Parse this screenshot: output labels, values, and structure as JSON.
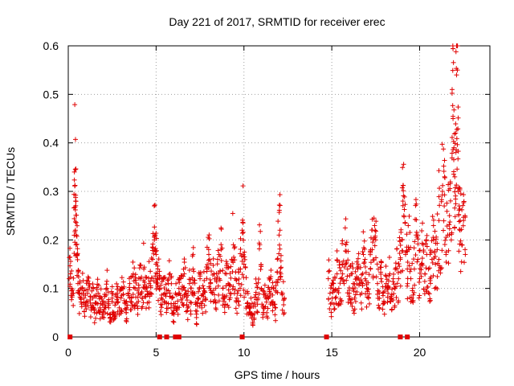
{
  "chart_data": {
    "type": "scatter",
    "title": "Day 221 of 2017, SRMTID for receiver erec",
    "xlabel": "GPS time / hours",
    "ylabel": "SRMTID / TECUs",
    "xlim": [
      0,
      24
    ],
    "ylim": [
      0,
      0.6
    ],
    "xticks": [
      0,
      5,
      10,
      15,
      20
    ],
    "yticks": [
      0,
      0.1,
      0.2,
      0.3,
      0.4,
      0.5,
      0.6
    ],
    "xtick_labels": [
      "0",
      "5",
      "10",
      "15",
      "20"
    ],
    "ytick_labels": [
      "0",
      "0.1",
      "0.2",
      "0.3",
      "0.4",
      "0.5",
      "0.6"
    ],
    "grid": true,
    "marker": "+",
    "color": "#e00000",
    "series": [
      {
        "name": "SRMTID",
        "points": [
          [
            0.05,
            0.12
          ],
          [
            0.12,
            0.13
          ],
          [
            0.2,
            0.1
          ],
          [
            0.3,
            0.09
          ],
          [
            0.35,
            0.34
          ],
          [
            0.4,
            0.345
          ],
          [
            0.42,
            0.28
          ],
          [
            0.45,
            0.21
          ],
          [
            0.5,
            0.17
          ],
          [
            0.55,
            0.11
          ],
          [
            0.6,
            0.09
          ],
          [
            0.7,
            0.08
          ],
          [
            0.8,
            0.1
          ],
          [
            0.9,
            0.08
          ],
          [
            1.0,
            0.07
          ],
          [
            1.1,
            0.09
          ],
          [
            1.2,
            0.11
          ],
          [
            1.3,
            0.06
          ],
          [
            1.4,
            0.08
          ],
          [
            1.5,
            0.05
          ],
          [
            1.6,
            0.07
          ],
          [
            1.7,
            0.09
          ],
          [
            1.8,
            0.06
          ],
          [
            1.9,
            0.08
          ],
          [
            2.0,
            0.05
          ],
          [
            2.1,
            0.07
          ],
          [
            2.2,
            0.1
          ],
          [
            2.3,
            0.06
          ],
          [
            2.4,
            0.04
          ],
          [
            2.5,
            0.08
          ],
          [
            2.6,
            0.05
          ],
          [
            2.7,
            0.07
          ],
          [
            2.8,
            0.09
          ],
          [
            2.9,
            0.06
          ],
          [
            3.0,
            0.08
          ],
          [
            3.1,
            0.1
          ],
          [
            3.2,
            0.07
          ],
          [
            3.3,
            0.05
          ],
          [
            3.4,
            0.09
          ],
          [
            3.5,
            0.11
          ],
          [
            3.6,
            0.08
          ],
          [
            3.7,
            0.13
          ],
          [
            3.8,
            0.1
          ],
          [
            3.9,
            0.07
          ],
          [
            4.0,
            0.09
          ],
          [
            4.1,
            0.12
          ],
          [
            4.2,
            0.08
          ],
          [
            4.3,
            0.14
          ],
          [
            4.4,
            0.1
          ],
          [
            4.5,
            0.07
          ],
          [
            4.6,
            0.11
          ],
          [
            4.7,
            0.09
          ],
          [
            4.8,
            0.16
          ],
          [
            4.9,
            0.2
          ],
          [
            4.95,
            0.21
          ],
          [
            5.0,
            0.17
          ],
          [
            5.05,
            0.12
          ],
          [
            5.1,
            0.14
          ],
          [
            5.2,
            0.1
          ],
          [
            5.3,
            0.08
          ],
          [
            5.4,
            0.12
          ],
          [
            5.5,
            0.09
          ],
          [
            5.6,
            0.07
          ],
          [
            5.7,
            0.11
          ],
          [
            5.8,
            0.13
          ],
          [
            5.9,
            0.08
          ],
          [
            6.0,
            0.05
          ],
          [
            6.1,
            0.09
          ],
          [
            6.2,
            0.06
          ],
          [
            6.3,
            0.1
          ],
          [
            6.4,
            0.12
          ],
          [
            6.5,
            0.08
          ],
          [
            6.6,
            0.13
          ],
          [
            6.7,
            0.09
          ],
          [
            6.8,
            0.06
          ],
          [
            6.9,
            0.11
          ],
          [
            7.0,
            0.07
          ],
          [
            7.1,
            0.14
          ],
          [
            7.2,
            0.09
          ],
          [
            7.3,
            0.04
          ],
          [
            7.4,
            0.08
          ],
          [
            7.5,
            0.12
          ],
          [
            7.6,
            0.06
          ],
          [
            7.7,
            0.1
          ],
          [
            7.8,
            0.08
          ],
          [
            7.9,
            0.14
          ],
          [
            8.0,
            0.17
          ],
          [
            8.1,
            0.11
          ],
          [
            8.2,
            0.09
          ],
          [
            8.3,
            0.13
          ],
          [
            8.4,
            0.07
          ],
          [
            8.5,
            0.16
          ],
          [
            8.6,
            0.12
          ],
          [
            8.7,
            0.18
          ],
          [
            8.8,
            0.1
          ],
          [
            8.9,
            0.08
          ],
          [
            9.0,
            0.13
          ],
          [
            9.1,
            0.11
          ],
          [
            9.2,
            0.09
          ],
          [
            9.3,
            0.16
          ],
          [
            9.4,
            0.19
          ],
          [
            9.5,
            0.12
          ],
          [
            9.6,
            0.08
          ],
          [
            9.7,
            0.11
          ],
          [
            9.8,
            0.14
          ],
          [
            9.9,
            0.22
          ],
          [
            9.95,
            0.235
          ],
          [
            10.0,
            0.15
          ],
          [
            10.1,
            0.09
          ],
          [
            10.2,
            0.07
          ],
          [
            10.3,
            0.05
          ],
          [
            10.4,
            0.08
          ],
          [
            10.5,
            0.03
          ],
          [
            10.6,
            0.07
          ],
          [
            10.7,
            0.11
          ],
          [
            10.8,
            0.08
          ],
          [
            10.9,
            0.19
          ],
          [
            11.0,
            0.1
          ],
          [
            11.1,
            0.06
          ],
          [
            11.2,
            0.09
          ],
          [
            11.3,
            0.05
          ],
          [
            11.4,
            0.08
          ],
          [
            11.5,
            0.12
          ],
          [
            11.6,
            0.07
          ],
          [
            11.7,
            0.1
          ],
          [
            11.8,
            0.06
          ],
          [
            11.9,
            0.16
          ],
          [
            12.0,
            0.21
          ],
          [
            12.05,
            0.22
          ],
          [
            12.1,
            0.13
          ],
          [
            12.2,
            0.09
          ],
          [
            12.3,
            0.08
          ],
          [
            14.8,
            0.12
          ],
          [
            14.9,
            0.09
          ],
          [
            15.0,
            0.07
          ],
          [
            15.1,
            0.11
          ],
          [
            15.2,
            0.08
          ],
          [
            15.3,
            0.13
          ],
          [
            15.4,
            0.1
          ],
          [
            15.5,
            0.12
          ],
          [
            15.6,
            0.15
          ],
          [
            15.7,
            0.11
          ],
          [
            15.8,
            0.19
          ],
          [
            15.9,
            0.14
          ],
          [
            16.0,
            0.09
          ],
          [
            16.1,
            0.13
          ],
          [
            16.2,
            0.1
          ],
          [
            16.3,
            0.08
          ],
          [
            16.4,
            0.12
          ],
          [
            16.5,
            0.15
          ],
          [
            16.6,
            0.11
          ],
          [
            16.7,
            0.09
          ],
          [
            16.8,
            0.17
          ],
          [
            16.9,
            0.12
          ],
          [
            17.0,
            0.1
          ],
          [
            17.1,
            0.08
          ],
          [
            17.2,
            0.14
          ],
          [
            17.3,
            0.18
          ],
          [
            17.4,
            0.245
          ],
          [
            17.5,
            0.2
          ],
          [
            17.6,
            0.11
          ],
          [
            17.7,
            0.08
          ],
          [
            17.8,
            0.12
          ],
          [
            17.9,
            0.09
          ],
          [
            18.0,
            0.07
          ],
          [
            18.1,
            0.11
          ],
          [
            18.2,
            0.09
          ],
          [
            18.3,
            0.13
          ],
          [
            18.4,
            0.08
          ],
          [
            18.5,
            0.12
          ],
          [
            18.6,
            0.1
          ],
          [
            18.7,
            0.14
          ],
          [
            18.8,
            0.12
          ],
          [
            18.9,
            0.16
          ],
          [
            19.0,
            0.2
          ],
          [
            19.05,
            0.28
          ],
          [
            19.1,
            0.25
          ],
          [
            19.2,
            0.17
          ],
          [
            19.3,
            0.14
          ],
          [
            19.4,
            0.18
          ],
          [
            19.5,
            0.12
          ],
          [
            19.6,
            0.1
          ],
          [
            19.7,
            0.14
          ],
          [
            19.8,
            0.21
          ],
          [
            19.9,
            0.16
          ],
          [
            20.0,
            0.12
          ],
          [
            20.1,
            0.15
          ],
          [
            20.2,
            0.19
          ],
          [
            20.3,
            0.13
          ],
          [
            20.4,
            0.17
          ],
          [
            20.5,
            0.14
          ],
          [
            20.6,
            0.12
          ],
          [
            20.7,
            0.16
          ],
          [
            20.8,
            0.2
          ],
          [
            20.9,
            0.15
          ],
          [
            21.0,
            0.18
          ],
          [
            21.1,
            0.24
          ],
          [
            21.2,
            0.14
          ],
          [
            21.3,
            0.3
          ],
          [
            21.4,
            0.27
          ],
          [
            21.5,
            0.17
          ],
          [
            21.6,
            0.21
          ],
          [
            21.7,
            0.25
          ],
          [
            21.8,
            0.2
          ],
          [
            21.85,
            0.51
          ],
          [
            21.9,
            0.45
          ],
          [
            21.95,
            0.39
          ],
          [
            22.0,
            0.33
          ],
          [
            22.05,
            0.42
          ],
          [
            22.1,
            0.54
          ],
          [
            22.15,
            0.55
          ],
          [
            22.2,
            0.3
          ],
          [
            22.25,
            0.27
          ],
          [
            22.3,
            0.22
          ],
          [
            22.4,
            0.19
          ],
          [
            22.5,
            0.24
          ],
          [
            22.6,
            0.17
          ]
        ]
      }
    ],
    "zero_markers_x": [
      0.1,
      5.2,
      5.6,
      6.1,
      6.3,
      9.9,
      14.7,
      18.9,
      19.3
    ]
  }
}
